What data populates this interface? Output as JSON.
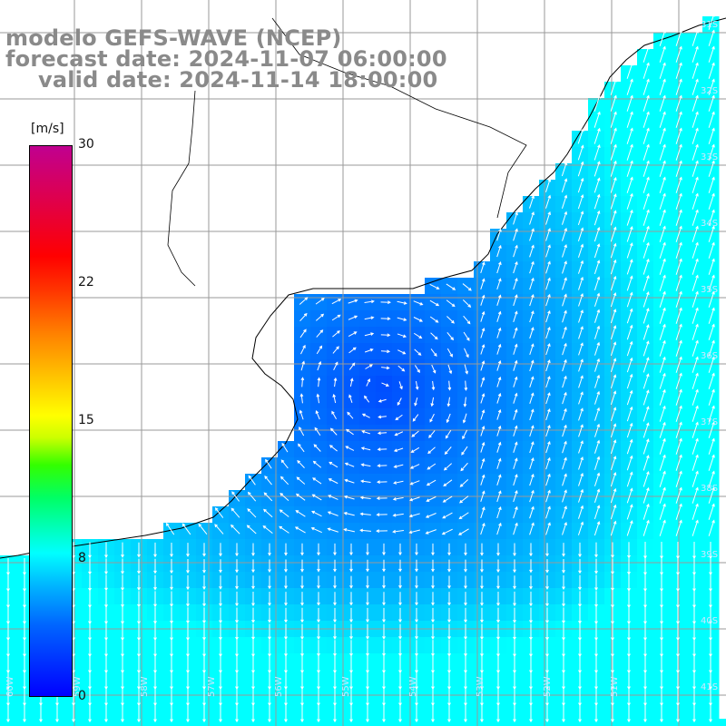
{
  "title": {
    "line1": "modelo GEFS-WAVE (NCEP)",
    "line2": "forecast date: 2024-11-07 06:00:00",
    "line3": "valid date: 2024-11-14 18:00:00"
  },
  "colorbar": {
    "unit": "[m/s]",
    "ticks": [
      "30",
      "22",
      "15",
      "8",
      "0"
    ],
    "stops": [
      "#0000ff",
      "#0066ff",
      "#00b4ff",
      "#00ffff",
      "#00ff66",
      "#33ff00",
      "#ccff00",
      "#ffff00",
      "#ffcc00",
      "#ff8000",
      "#ff3300",
      "#ff0000",
      "#e0004a",
      "#c00090"
    ]
  },
  "map": {
    "variable": "wind speed and direction",
    "units": "m/s",
    "lat_labels": [
      "41S",
      "40S",
      "39S",
      "38S",
      "37S",
      "36S",
      "35S",
      "34S",
      "33S",
      "32S",
      "31S"
    ],
    "lon_labels": [
      "60W",
      "59W",
      "58W",
      "57W",
      "56W",
      "55W",
      "54W",
      "53W",
      "52W",
      "51W"
    ],
    "land_color": "#ffffff",
    "grid_color": "#9a9a9a",
    "coast_color": "#000000",
    "arrow_color": "#ffffff",
    "field_description": "Weak wind minimum (dark blue) off Uruguay coast; stronger cyan winds along Brazilian coast and south of Rio de la Plata"
  }
}
